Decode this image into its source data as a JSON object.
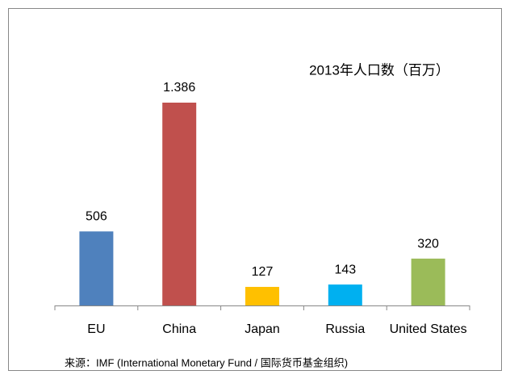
{
  "chart_data": {
    "type": "bar",
    "title": "2013年人口数（百万）",
    "categories": [
      "EU",
      "China",
      "Japan",
      "Russia",
      "United States"
    ],
    "values": [
      506,
      1386,
      127,
      143,
      320
    ],
    "value_labels": [
      "506",
      "1.386",
      "127",
      "143",
      "320"
    ],
    "colors": [
      "#4f81bd",
      "#c0504d",
      "#ffc000",
      "#00b0f0",
      "#9bbb59"
    ],
    "source": "来源：IMF (International Monetary Fund / 国际货币基金组织)"
  }
}
